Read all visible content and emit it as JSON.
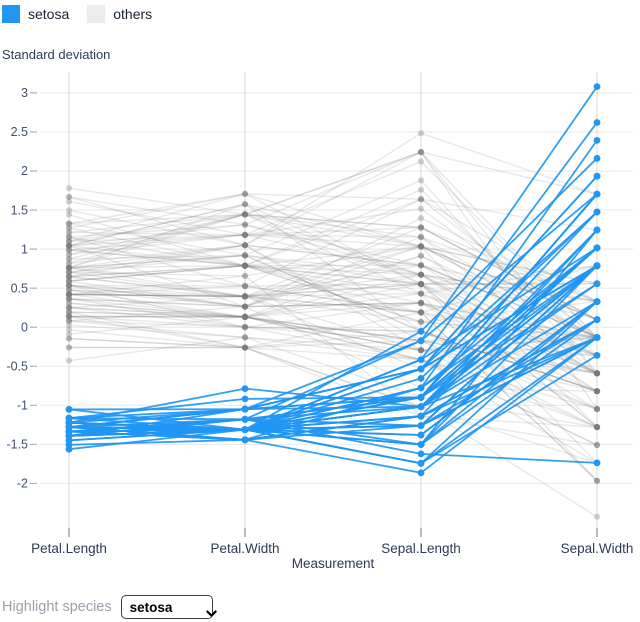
{
  "legend": {
    "items": [
      {
        "label": "setosa",
        "color": "#2196f3"
      },
      {
        "label": "others",
        "color": "#ececec"
      }
    ]
  },
  "controls": {
    "label": "Highlight species",
    "selected": "setosa",
    "options": [
      "setosa"
    ]
  },
  "chart_data": {
    "type": "line",
    "variant": "parallel-coordinates",
    "title": "",
    "ylabel": "Standard deviation",
    "xlabel": "Measurement",
    "categories": [
      "Petal.Length",
      "Petal.Width",
      "Sepal.Length",
      "Sepal.Width"
    ],
    "yticks": [
      3,
      2.5,
      2,
      1.5,
      1,
      0.5,
      0,
      -0.5,
      -1,
      -1.5,
      -2
    ],
    "ylim": [
      -2.6,
      3.3
    ],
    "grid": true,
    "legend_position": "top-left",
    "standardized": true,
    "units": "z-score (standard deviations, computed per column over all rows)",
    "highlight": "setosa",
    "colors": {
      "highlight_line": "#2196f3",
      "highlight_point": "#2196f3",
      "others_line": "rgba(120,120,120,0.17)",
      "others_point": "rgba(120,120,120,0.32)",
      "gridline": "#e8e8e8",
      "axis_line": "#d9d9d9",
      "tick_mark": "#9aa3ad",
      "axis_tick_mark": "#6f7a87",
      "tick_label": "#42526b",
      "axis_title": "#2f3b52"
    },
    "series": [
      {
        "name": "others",
        "rows": [
          [
            4.7,
            1.4,
            7.0,
            3.2
          ],
          [
            4.5,
            1.5,
            6.4,
            3.2
          ],
          [
            4.9,
            1.5,
            6.9,
            3.1
          ],
          [
            4.0,
            1.3,
            5.5,
            2.3
          ],
          [
            4.6,
            1.5,
            6.5,
            2.8
          ],
          [
            4.5,
            1.3,
            5.7,
            2.8
          ],
          [
            4.7,
            1.6,
            6.3,
            3.3
          ],
          [
            3.3,
            1.0,
            4.9,
            2.4
          ],
          [
            4.6,
            1.3,
            6.6,
            2.9
          ],
          [
            3.9,
            1.4,
            5.2,
            2.7
          ],
          [
            3.5,
            1.0,
            5.0,
            2.0
          ],
          [
            4.2,
            1.5,
            5.9,
            3.0
          ],
          [
            4.0,
            1.0,
            6.0,
            2.2
          ],
          [
            4.7,
            1.4,
            6.1,
            2.9
          ],
          [
            3.6,
            1.3,
            5.6,
            2.9
          ],
          [
            4.4,
            1.4,
            6.7,
            3.1
          ],
          [
            4.5,
            1.5,
            5.6,
            3.0
          ],
          [
            4.1,
            1.0,
            5.8,
            2.7
          ],
          [
            4.5,
            1.5,
            6.2,
            2.2
          ],
          [
            3.9,
            1.1,
            5.6,
            2.5
          ],
          [
            4.8,
            1.8,
            5.9,
            3.2
          ],
          [
            4.0,
            1.3,
            6.1,
            2.8
          ],
          [
            4.9,
            1.5,
            6.3,
            2.5
          ],
          [
            4.7,
            1.2,
            6.1,
            2.8
          ],
          [
            4.3,
            1.3,
            6.4,
            2.9
          ],
          [
            4.4,
            1.4,
            6.6,
            3.0
          ],
          [
            4.8,
            1.4,
            6.8,
            2.8
          ],
          [
            5.0,
            1.7,
            6.7,
            3.0
          ],
          [
            4.5,
            1.5,
            6.0,
            2.9
          ],
          [
            3.5,
            1.0,
            5.7,
            2.6
          ],
          [
            3.8,
            1.1,
            5.5,
            2.4
          ],
          [
            3.7,
            1.0,
            5.5,
            2.4
          ],
          [
            3.9,
            1.2,
            5.8,
            2.7
          ],
          [
            5.1,
            1.6,
            6.0,
            2.7
          ],
          [
            4.5,
            1.5,
            5.4,
            3.0
          ],
          [
            4.5,
            1.6,
            6.0,
            3.4
          ],
          [
            4.7,
            1.5,
            6.7,
            3.1
          ],
          [
            4.4,
            1.3,
            6.3,
            2.3
          ],
          [
            4.1,
            1.3,
            5.6,
            3.0
          ],
          [
            4.0,
            1.3,
            5.5,
            2.5
          ],
          [
            4.4,
            1.2,
            5.5,
            2.6
          ],
          [
            4.6,
            1.4,
            6.1,
            3.0
          ],
          [
            4.0,
            1.2,
            5.8,
            2.6
          ],
          [
            3.3,
            1.0,
            5.0,
            2.3
          ],
          [
            4.2,
            1.3,
            5.6,
            2.7
          ],
          [
            4.2,
            1.2,
            5.7,
            3.0
          ],
          [
            4.2,
            1.3,
            5.7,
            2.9
          ],
          [
            4.3,
            1.3,
            6.2,
            2.9
          ],
          [
            3.0,
            1.1,
            5.1,
            2.5
          ],
          [
            4.1,
            1.3,
            5.7,
            2.8
          ],
          [
            6.0,
            2.5,
            6.3,
            3.3
          ],
          [
            5.1,
            1.9,
            5.8,
            2.7
          ],
          [
            5.9,
            2.1,
            7.1,
            3.0
          ],
          [
            5.6,
            1.8,
            6.3,
            2.9
          ],
          [
            5.8,
            2.2,
            6.5,
            3.0
          ],
          [
            6.6,
            2.1,
            7.6,
            3.0
          ],
          [
            4.5,
            1.7,
            4.9,
            2.5
          ],
          [
            6.3,
            1.8,
            7.3,
            2.9
          ],
          [
            5.8,
            1.8,
            6.7,
            2.5
          ],
          [
            6.1,
            2.5,
            7.2,
            3.6
          ],
          [
            5.1,
            2.0,
            6.5,
            3.2
          ],
          [
            5.3,
            1.9,
            6.4,
            2.7
          ],
          [
            5.5,
            2.1,
            6.8,
            3.0
          ],
          [
            5.0,
            2.0,
            5.7,
            2.5
          ],
          [
            5.1,
            2.4,
            5.8,
            2.8
          ],
          [
            5.3,
            2.3,
            6.4,
            3.2
          ],
          [
            5.5,
            1.8,
            6.5,
            3.0
          ],
          [
            6.7,
            2.2,
            7.7,
            3.8
          ],
          [
            6.9,
            2.3,
            7.7,
            2.6
          ],
          [
            5.0,
            1.5,
            6.0,
            2.2
          ],
          [
            5.7,
            2.3,
            6.9,
            3.2
          ],
          [
            4.9,
            2.0,
            5.6,
            2.8
          ],
          [
            6.7,
            2.0,
            7.7,
            2.8
          ],
          [
            4.9,
            1.8,
            6.3,
            2.7
          ],
          [
            5.7,
            2.1,
            6.7,
            3.3
          ],
          [
            6.0,
            1.8,
            7.2,
            3.2
          ],
          [
            4.8,
            1.8,
            6.2,
            2.8
          ],
          [
            4.9,
            1.8,
            6.1,
            3.0
          ],
          [
            5.6,
            2.1,
            6.4,
            2.8
          ],
          [
            5.8,
            1.6,
            7.2,
            3.0
          ],
          [
            6.1,
            1.9,
            7.4,
            2.8
          ],
          [
            6.4,
            2.0,
            7.9,
            3.8
          ],
          [
            5.6,
            2.2,
            6.4,
            2.8
          ],
          [
            5.1,
            1.5,
            6.3,
            2.8
          ],
          [
            5.6,
            1.4,
            6.1,
            2.6
          ],
          [
            6.1,
            2.3,
            7.7,
            3.0
          ],
          [
            5.6,
            2.4,
            6.3,
            3.4
          ],
          [
            5.5,
            1.8,
            6.4,
            3.1
          ],
          [
            4.8,
            1.8,
            6.0,
            3.0
          ],
          [
            5.4,
            2.1,
            6.9,
            3.1
          ],
          [
            5.6,
            2.4,
            6.7,
            3.1
          ],
          [
            5.1,
            2.3,
            6.9,
            3.1
          ],
          [
            5.1,
            1.9,
            5.8,
            2.7
          ],
          [
            5.9,
            2.3,
            6.8,
            3.2
          ],
          [
            5.7,
            2.5,
            6.7,
            3.3
          ],
          [
            5.2,
            2.3,
            6.7,
            3.0
          ],
          [
            5.0,
            1.9,
            6.3,
            2.5
          ],
          [
            5.2,
            2.0,
            6.5,
            3.0
          ],
          [
            5.4,
            2.3,
            6.2,
            3.4
          ],
          [
            5.1,
            1.8,
            5.9,
            3.0
          ]
        ]
      },
      {
        "name": "setosa",
        "rows": [
          [
            1.4,
            0.2,
            5.1,
            3.5
          ],
          [
            1.4,
            0.2,
            4.9,
            3.0
          ],
          [
            1.3,
            0.2,
            4.7,
            3.2
          ],
          [
            1.5,
            0.2,
            4.6,
            3.1
          ],
          [
            1.4,
            0.2,
            5.0,
            3.6
          ],
          [
            1.7,
            0.4,
            5.4,
            3.9
          ],
          [
            1.4,
            0.3,
            4.6,
            3.4
          ],
          [
            1.5,
            0.2,
            5.0,
            3.4
          ],
          [
            1.4,
            0.2,
            4.4,
            2.9
          ],
          [
            1.5,
            0.1,
            4.9,
            3.1
          ],
          [
            1.5,
            0.2,
            5.4,
            3.7
          ],
          [
            1.6,
            0.2,
            4.8,
            3.4
          ],
          [
            1.4,
            0.1,
            4.8,
            3.0
          ],
          [
            1.1,
            0.1,
            4.3,
            3.0
          ],
          [
            1.2,
            0.2,
            5.8,
            4.0
          ],
          [
            1.5,
            0.4,
            5.7,
            4.4
          ],
          [
            1.3,
            0.4,
            5.4,
            3.9
          ],
          [
            1.4,
            0.3,
            5.1,
            3.5
          ],
          [
            1.7,
            0.3,
            5.7,
            3.8
          ],
          [
            1.5,
            0.3,
            5.1,
            3.8
          ],
          [
            1.7,
            0.2,
            5.4,
            3.4
          ],
          [
            1.5,
            0.4,
            5.1,
            3.7
          ],
          [
            1.0,
            0.2,
            4.6,
            3.6
          ],
          [
            1.7,
            0.5,
            5.1,
            3.3
          ],
          [
            1.9,
            0.2,
            4.8,
            3.4
          ],
          [
            1.6,
            0.2,
            5.0,
            3.0
          ],
          [
            1.6,
            0.4,
            5.0,
            3.4
          ],
          [
            1.5,
            0.2,
            5.2,
            3.5
          ],
          [
            1.4,
            0.2,
            5.2,
            3.4
          ],
          [
            1.6,
            0.2,
            4.7,
            3.2
          ],
          [
            1.6,
            0.2,
            4.8,
            3.1
          ],
          [
            1.5,
            0.4,
            5.4,
            3.4
          ],
          [
            1.5,
            0.1,
            5.2,
            4.1
          ],
          [
            1.4,
            0.2,
            5.5,
            4.2
          ],
          [
            1.5,
            0.2,
            4.9,
            3.1
          ],
          [
            1.2,
            0.2,
            5.0,
            3.2
          ],
          [
            1.3,
            0.2,
            5.5,
            3.5
          ],
          [
            1.4,
            0.1,
            4.9,
            3.6
          ],
          [
            1.3,
            0.2,
            4.4,
            3.0
          ],
          [
            1.5,
            0.2,
            5.1,
            3.4
          ],
          [
            1.3,
            0.3,
            5.0,
            3.5
          ],
          [
            1.3,
            0.3,
            4.5,
            2.3
          ],
          [
            1.3,
            0.2,
            4.4,
            3.2
          ],
          [
            1.6,
            0.6,
            5.0,
            3.5
          ],
          [
            1.9,
            0.4,
            5.1,
            3.8
          ],
          [
            1.4,
            0.3,
            4.8,
            3.0
          ],
          [
            1.6,
            0.2,
            5.1,
            3.8
          ],
          [
            1.4,
            0.2,
            4.6,
            3.2
          ],
          [
            1.5,
            0.2,
            5.3,
            3.7
          ],
          [
            1.4,
            0.2,
            5.0,
            3.3
          ]
        ]
      }
    ]
  }
}
